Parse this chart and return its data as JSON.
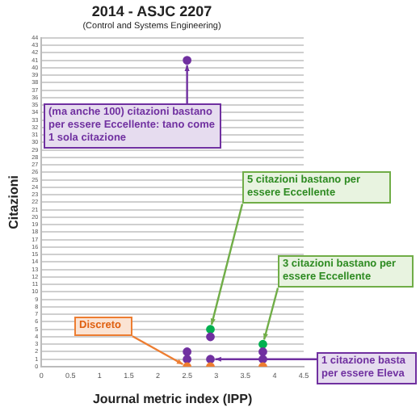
{
  "chart_data": {
    "type": "scatter",
    "title": "2014 - ASJC 2207",
    "subtitle": "(Control and Systems Engineering)",
    "xlabel": "Journal metric index (IPP)",
    "ylabel": "Citazioni",
    "series": [
      {
        "color": "#ed7d31",
        "x": [
          2.5,
          2.9,
          3.8
        ],
        "values": [
          0,
          0,
          0
        ]
      },
      {
        "color": "#7030a0",
        "x": [
          2.5,
          2.5,
          2.5,
          2.9,
          2.9,
          3.8,
          3.8
        ],
        "values": [
          1,
          2,
          41,
          1,
          4,
          1,
          2
        ]
      },
      {
        "color": "#00b050",
        "x": [
          2.9,
          3.8
        ],
        "values": [
          5,
          3
        ]
      }
    ],
    "xlim": [
      0,
      4.5
    ],
    "xticks": [
      0,
      0.5,
      1,
      1.5,
      2,
      2.5,
      3,
      3.5,
      4,
      4.5
    ],
    "ylim": [
      0,
      44
    ],
    "yticks": [
      0,
      1,
      2,
      3,
      4,
      5,
      6,
      7,
      8,
      9,
      10,
      11,
      12,
      13,
      14,
      15,
      16,
      17,
      18,
      19,
      20,
      21,
      22,
      23,
      24,
      25,
      26,
      27,
      28,
      29,
      30,
      31,
      32,
      33,
      34,
      35,
      36,
      37,
      38,
      39,
      40,
      41,
      42,
      43,
      44
    ],
    "grid": "y",
    "legend": false,
    "marker": "circle",
    "annotations": [
      {
        "text": "(ma anche 100) citazioni bastano per essere Eccellente: tano come 1 sola citazione",
        "x": 2.5,
        "y": 41
      },
      {
        "text": "5 citazioni bastano per essere Eccellente",
        "x": 2.9,
        "y": 5
      },
      {
        "text": "3 citazioni bastano per essere Eccellente",
        "x": 3.8,
        "y": 3
      },
      {
        "text": "Discreto",
        "x": 2.5,
        "y": 0
      },
      {
        "text": "1 citazione basta per essere Eleva",
        "x": 2.9,
        "y": 1
      }
    ]
  }
}
